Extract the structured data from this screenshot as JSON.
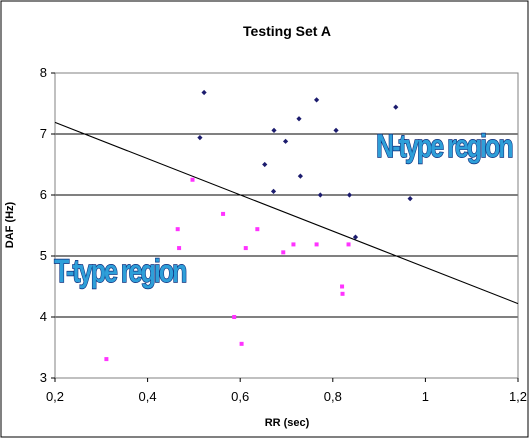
{
  "chart_data": {
    "type": "scatter",
    "title": "Testing Set A",
    "xlabel": "RR (sec)",
    "ylabel": "DAF (Hz)",
    "xlim": [
      0.2,
      1.2
    ],
    "ylim": [
      3,
      8
    ],
    "x_ticks": [
      0.2,
      0.4,
      0.6,
      0.8,
      1.0,
      1.2
    ],
    "x_tick_labels": [
      "0,2",
      "0,4",
      "0,6",
      "0,8",
      "1",
      "1,2"
    ],
    "y_ticks": [
      3,
      4,
      5,
      6,
      7,
      8
    ],
    "y_tick_labels": [
      "3",
      "4",
      "5",
      "6",
      "7",
      "8"
    ],
    "grid": "horizontal",
    "legend": "none",
    "series": [
      {
        "marker": "diamond",
        "color": "#1c1c6e",
        "points": [
          [
            0.513,
            6.94
          ],
          [
            0.522,
            7.68
          ],
          [
            0.653,
            6.5
          ],
          [
            0.672,
            6.06
          ],
          [
            0.673,
            7.06
          ],
          [
            0.698,
            6.88
          ],
          [
            0.727,
            7.25
          ],
          [
            0.73,
            6.31
          ],
          [
            0.765,
            7.56
          ],
          [
            0.773,
            6.0
          ],
          [
            0.807,
            7.06
          ],
          [
            0.836,
            6.0
          ],
          [
            0.849,
            5.31
          ],
          [
            0.936,
            7.44
          ],
          [
            0.967,
            5.94
          ]
        ]
      },
      {
        "marker": "square",
        "color": "#ff33ff",
        "points": [
          [
            0.311,
            3.31
          ],
          [
            0.465,
            5.44
          ],
          [
            0.468,
            5.13
          ],
          [
            0.497,
            6.25
          ],
          [
            0.563,
            5.69
          ],
          [
            0.587,
            4.0
          ],
          [
            0.603,
            3.56
          ],
          [
            0.612,
            5.13
          ],
          [
            0.637,
            5.44
          ],
          [
            0.693,
            5.06
          ],
          [
            0.715,
            5.19
          ],
          [
            0.765,
            5.19
          ],
          [
            0.82,
            4.5
          ],
          [
            0.821,
            4.38
          ],
          [
            0.834,
            5.19
          ]
        ]
      }
    ],
    "boundary_line": {
      "x": [
        0.2,
        1.2
      ],
      "y": [
        7.19,
        4.22
      ],
      "color": "#000000"
    },
    "annotations": [
      {
        "text": "N-type region",
        "x": 1.04,
        "y": 6.62,
        "anchor": "middle"
      },
      {
        "text": "T-type region",
        "x": 0.34,
        "y": 4.57,
        "anchor": "middle"
      }
    ]
  }
}
